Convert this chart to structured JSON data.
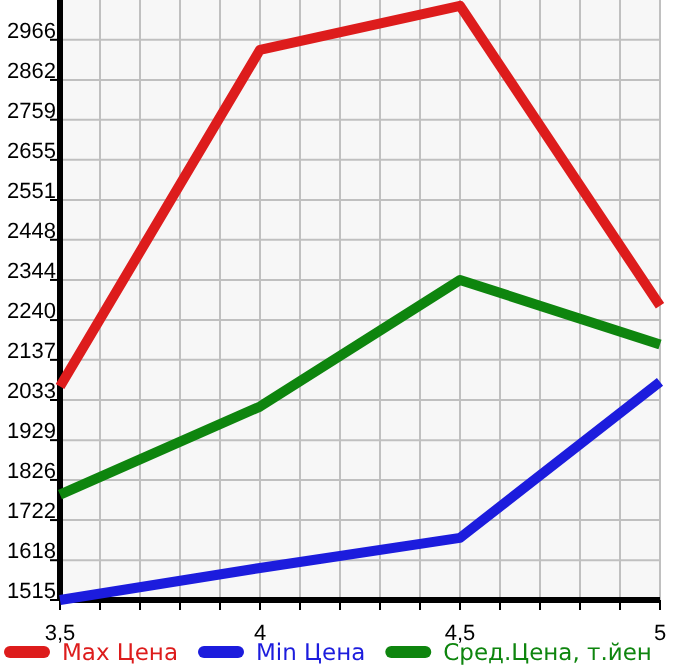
{
  "chart_data": {
    "type": "line",
    "x": [
      3.5,
      4,
      4.5,
      5
    ],
    "series": [
      {
        "name": "Max Цена",
        "color": "#dd1c1c",
        "values": [
          2068,
          2940,
          3054,
          2277
        ]
      },
      {
        "name": "Min Цена",
        "color": "#1c1cdd",
        "values": [
          1515,
          1598,
          1676,
          2080
        ]
      },
      {
        "name": "Сред.Цена, т.йен",
        "color": "#0e850e",
        "values": [
          1788,
          2016,
          2344,
          2177
        ]
      }
    ],
    "xlim": [
      3.5,
      5
    ],
    "xticks": [
      {
        "value": 3.5,
        "label": "3,5"
      },
      {
        "value": 3.6,
        "label": null
      },
      {
        "value": 3.7,
        "label": null
      },
      {
        "value": 3.8,
        "label": null
      },
      {
        "value": 3.9,
        "label": null
      },
      {
        "value": 4,
        "label": "4"
      },
      {
        "value": 4.1,
        "label": null
      },
      {
        "value": 4.2,
        "label": null
      },
      {
        "value": 4.3,
        "label": null
      },
      {
        "value": 4.4,
        "label": null
      },
      {
        "value": 4.5,
        "label": "4,5"
      },
      {
        "value": 4.6,
        "label": null
      },
      {
        "value": 4.7,
        "label": null
      },
      {
        "value": 4.8,
        "label": null
      },
      {
        "value": 4.9,
        "label": null
      },
      {
        "value": 5,
        "label": "5"
      }
    ],
    "ylim": [
      1515,
      3069
    ],
    "yticks": [
      1515,
      1618,
      1722,
      1826,
      1929,
      2033,
      2137,
      2240,
      2344,
      2448,
      2551,
      2655,
      2759,
      2862,
      2966
    ],
    "grid": true,
    "legend": "bottom",
    "marker": "none",
    "line_style": "solid"
  }
}
